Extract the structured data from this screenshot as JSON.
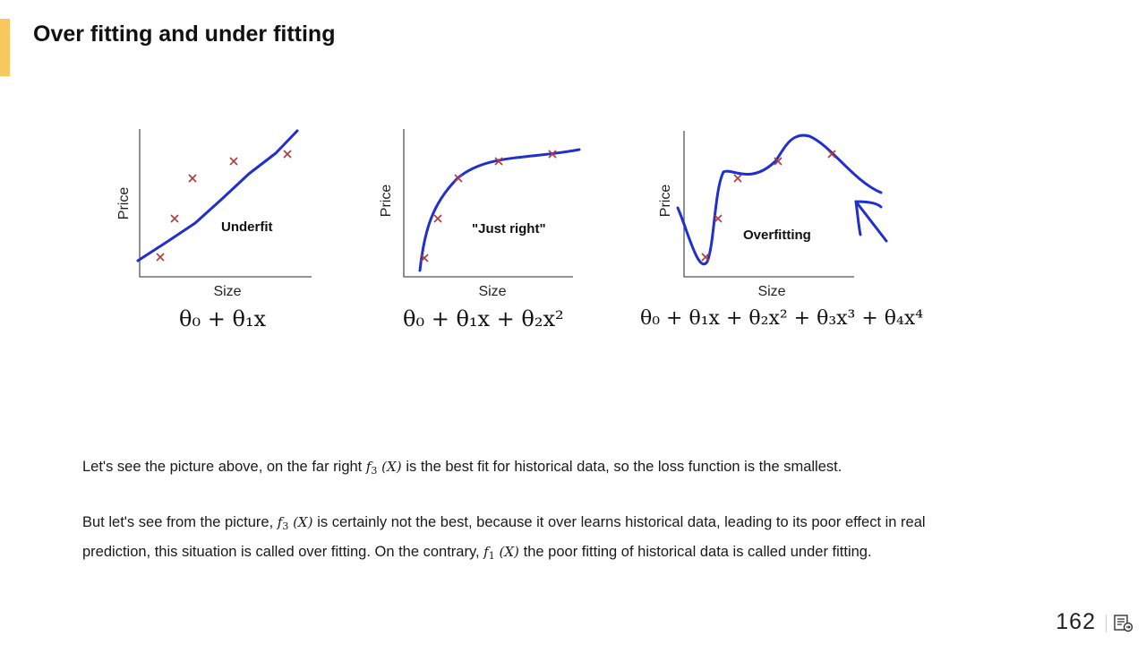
{
  "slide": {
    "title": "Over fitting and under fitting",
    "page_number": "162"
  },
  "figure": {
    "panels": [
      {
        "ylabel": "Price",
        "xlabel": "Size",
        "label": "Underfit",
        "formula": "θ₀ + θ₁x"
      },
      {
        "ylabel": "Price",
        "xlabel": "Size",
        "label": "\"Just right\"",
        "formula": "θ₀ + θ₁x + θ₂x²"
      },
      {
        "ylabel": "Price",
        "xlabel": "Size",
        "label": "Overfitting",
        "formula": "θ₀ + θ₁x + θ₂x² + θ₃x³ + θ₄x⁴"
      }
    ]
  },
  "body": {
    "p1_before": "Let's see the picture above, on the far right ",
    "p1_func": "f",
    "p1_sub": "3",
    "p1_arg": " (X) ",
    "p1_after": "is the best fit for historical data, so the loss function is the smallest.",
    "p2_before": "But let's see from the picture, ",
    "p2_func": "f",
    "p2_sub": "3",
    "p2_arg": " (X) ",
    "p2_after": " is certainly not the best, because it over learns historical data, leading to its poor effect in real",
    "p2_line2_before": "prediction, this situation is called over fitting. On the contrary, ",
    "p2_line2_func": "f",
    "p2_line2_sub": "1",
    "p2_line2_arg": " (X) ",
    "p2_line2_after": "the poor fitting of historical data is called under fitting."
  },
  "colors": {
    "accent": "#f9c85d",
    "curve": "#1f2fd0",
    "marker": "#b33a3a"
  },
  "footer": {
    "icon": "presentation-icon"
  }
}
